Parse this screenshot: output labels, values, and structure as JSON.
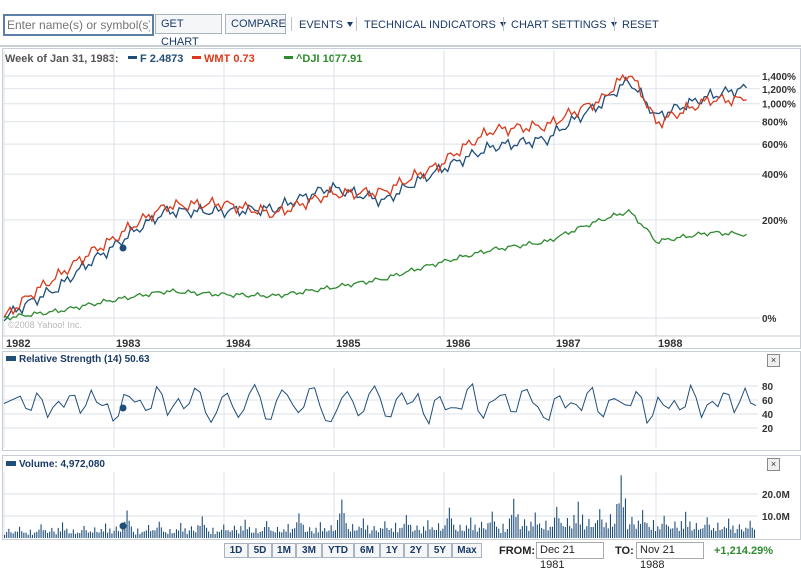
{
  "toolbar": {
    "symbol_placeholder": "Enter name(s) or symbol(s)",
    "get_chart_label": "GET CHART",
    "compare_label": "COMPARE",
    "events_label": "EVENTS",
    "technical_indicators_label": "TECHNICAL INDICATORS",
    "chart_settings_label": "CHART SETTINGS",
    "reset_label": "RESET"
  },
  "colors": {
    "F": "#1f4e79",
    "WMT": "#d93a1b",
    "DJI": "#2e8b2e",
    "rsi": "#1f4e79",
    "volume": "#1f4e79",
    "grid": "#dde2e8",
    "positive": "#2e8b2e"
  },
  "legend": {
    "date_text": "Week of Jan 31, 1983:",
    "items": [
      {
        "symbol": "F",
        "value": "2.4873",
        "label": "F 2.4873"
      },
      {
        "symbol": "WMT",
        "value": "0.73",
        "label": "WMT 0.73"
      },
      {
        "symbol": "^DJI",
        "value": "1077.91",
        "label": "^DJI 1077.91"
      }
    ]
  },
  "watermark": "©2008 Yahoo! Inc.",
  "rsi_panel": {
    "title": "Relative Strength (14) 50.63",
    "ticks": [
      "80",
      "60",
      "40",
      "20"
    ]
  },
  "volume_panel": {
    "title": "Volume: 4,972,080",
    "ticks": [
      "20.0M",
      "10.0M"
    ]
  },
  "range_buttons": [
    "1D",
    "5D",
    "1M",
    "3M",
    "YTD",
    "6M",
    "1Y",
    "2Y",
    "5Y",
    "Max"
  ],
  "from_label": "FROM:",
  "from_value": "Dec 21 1981",
  "to_label": "TO:",
  "to_value": "Nov 21 1988",
  "change_text": "+1,214.29%",
  "close_icon_text": "×",
  "chart_data": [
    {
      "type": "line",
      "title": "",
      "y_scale": "log",
      "x_ticks": [
        "1982",
        "1983",
        "1984",
        "1985",
        "1986",
        "1987",
        "1988"
      ],
      "y_ticks": [
        "1,400%",
        "1,200%",
        "1,000%",
        "800%",
        "600%",
        "400%",
        "200%",
        "0%"
      ],
      "x": [
        "1982-01",
        "1982-07",
        "1983-01",
        "1983-07",
        "1984-01",
        "1984-07",
        "1985-01",
        "1985-07",
        "1986-01",
        "1986-07",
        "1987-01",
        "1987-07",
        "1987-10",
        "1988-01",
        "1988-07",
        "1988-11"
      ],
      "series": [
        {
          "name": "F",
          "values": [
            0,
            40,
            120,
            230,
            230,
            240,
            330,
            270,
            420,
            580,
            640,
            1000,
            1320,
            850,
            1100,
            1214
          ]
        },
        {
          "name": "WMT",
          "values": [
            0,
            60,
            140,
            250,
            260,
            220,
            300,
            310,
            450,
            720,
            760,
            1050,
            1450,
            780,
            1050,
            1050
          ]
        },
        {
          "name": "^DJI",
          "values": [
            0,
            8,
            22,
            35,
            30,
            28,
            40,
            55,
            85,
            115,
            135,
            200,
            230,
            135,
            160,
            155
          ]
        }
      ]
    },
    {
      "type": "line",
      "title": "Relative Strength (14)",
      "ylim": [
        0,
        100
      ],
      "y_ticks": [
        80,
        60,
        40,
        20
      ],
      "series": [
        {
          "name": "Relative Strength (14)",
          "values": [
            55,
            62,
            48,
            70,
            35,
            58,
            66,
            41,
            74,
            52,
            30,
            68,
            57,
            45,
            79,
            38,
            62,
            55,
            71,
            28,
            64,
            50,
            46,
            82,
            33,
            59,
            67,
            42,
            76,
            51,
            29,
            63,
            58,
            44,
            80,
            37,
            61,
            54,
            69,
            26,
            65,
            49,
            47,
            83,
            34,
            60,
            68,
            43,
            75,
            50,
            31,
            66,
            56,
            45,
            78,
            36,
            62,
            53,
            72,
            27,
            64,
            48,
            46,
            81,
            35,
            58,
            70,
            42,
            77,
            52
          ]
        }
      ]
    },
    {
      "type": "bar",
      "title": "Volume",
      "ylim": [
        0,
        30000000
      ],
      "y_ticks": [
        "20.0M",
        "10.0M"
      ],
      "series": [
        {
          "name": "Volume",
          "values": [
            4200000,
            5100000,
            3800000,
            6200000,
            4600000,
            7100000,
            3900000,
            5500000,
            4800000,
            6600000,
            5200000,
            12500000,
            4300000,
            5900000,
            7400000,
            4100000,
            6800000,
            5300000,
            9800000,
            4700000,
            6100000,
            5600000,
            8300000,
            4400000,
            7700000,
            5000000,
            6400000,
            11200000,
            4900000,
            7200000,
            5800000,
            17500000,
            6300000,
            8900000,
            5400000,
            7600000,
            6900000,
            10400000,
            5700000,
            8100000,
            6700000,
            13800000,
            6000000,
            9300000,
            7300000,
            12000000,
            6500000,
            17800000,
            8500000,
            11600000,
            7900000,
            14200000,
            9100000,
            16500000,
            8700000,
            13100000,
            10800000,
            28500000,
            9600000,
            12700000,
            8200000,
            10100000,
            7500000,
            11900000,
            6800000,
            9400000,
            7000000,
            8800000,
            6200000,
            7800000
          ]
        }
      ]
    }
  ]
}
